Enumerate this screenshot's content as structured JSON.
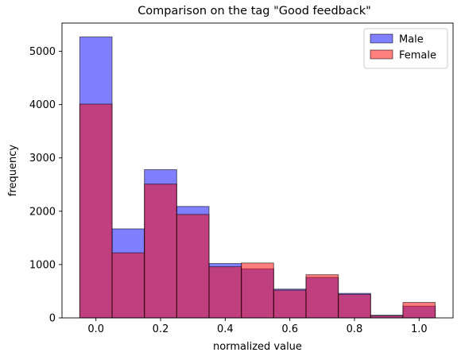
{
  "chart_data": {
    "type": "bar",
    "title": "Comparison on the tag \"Good feedback\"",
    "xlabel": "normalized value",
    "ylabel": "frequency",
    "xlim": [
      -0.105,
      1.105
    ],
    "ylim": [
      0,
      5530
    ],
    "bin_width": 0.1,
    "bin_centers": [
      0.0,
      0.1,
      0.2,
      0.3,
      0.4,
      0.5,
      0.6,
      0.7,
      0.8,
      0.9,
      1.0
    ],
    "xticks": [
      0.0,
      0.2,
      0.4,
      0.6,
      0.8,
      1.0
    ],
    "xtick_labels": [
      "0.0",
      "0.2",
      "0.4",
      "0.6",
      "0.8",
      "1.0"
    ],
    "yticks": [
      0,
      1000,
      2000,
      3000,
      4000,
      5000
    ],
    "ytick_labels": [
      "0",
      "1000",
      "2000",
      "3000",
      "4000",
      "5000"
    ],
    "legend_position": "top-right",
    "series": [
      {
        "name": "Male",
        "color": "#0000ff",
        "opacity": 0.5,
        "values": [
          5270,
          1670,
          2780,
          2090,
          1020,
          920,
          540,
          760,
          460,
          50,
          220
        ]
      },
      {
        "name": "Female",
        "color": "#ff0000",
        "opacity": 0.5,
        "values": [
          4010,
          1220,
          2510,
          1940,
          960,
          1030,
          520,
          810,
          440,
          40,
          290
        ]
      }
    ]
  }
}
